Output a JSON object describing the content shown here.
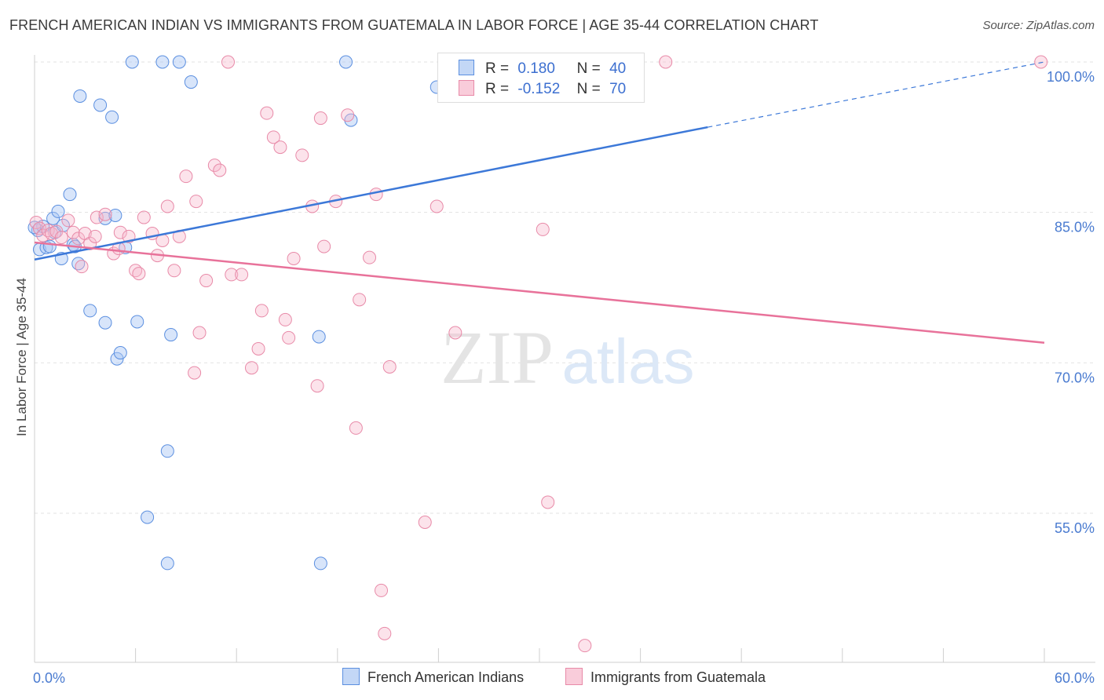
{
  "header": {
    "title": "FRENCH AMERICAN INDIAN VS IMMIGRANTS FROM GUATEMALA IN LABOR FORCE | AGE 35-44 CORRELATION CHART",
    "source": "Source: ZipAtlas.com"
  },
  "watermark": {
    "zip": "ZIP",
    "atlas": "atlas"
  },
  "legend": {
    "rows": [
      {
        "r_label": "R =",
        "r_value": "0.180",
        "n_label": "N =",
        "n_value": "40"
      },
      {
        "r_label": "R =",
        "r_value": "-0.152",
        "n_label": "N =",
        "n_value": "70"
      }
    ]
  },
  "chart_data": {
    "type": "scatter",
    "title": "FRENCH AMERICAN INDIAN VS IMMIGRANTS FROM GUATEMALA IN LABOR FORCE | AGE 35-44 CORRELATION CHART",
    "xlabel": "",
    "ylabel": "In Labor Force | Age 35-44",
    "xlim": [
      0,
      60
    ],
    "ylim": [
      40,
      102
    ],
    "x_tick_labels": [
      "0.0%",
      "60.0%"
    ],
    "y_ticks": [
      55,
      70,
      85,
      100
    ],
    "y_tick_labels": [
      "55.0%",
      "70.0%",
      "85.0%",
      "100.0%"
    ],
    "grid": true,
    "legend_position": "top-center",
    "colors": {
      "blue": "#3c78d8",
      "blue_fill": "#a9c6f5",
      "pink": "#e8729a",
      "pink_fill": "#f7b8cc",
      "tick_text": "#4a7bd0"
    },
    "series": [
      {
        "name": "French American Indians",
        "color": "#3c78d8",
        "r": 0.18,
        "n": 40,
        "trend": {
          "x0": 0,
          "y0": 80.3,
          "x1": 40,
          "y1": 93.5,
          "dashed_x1": 60,
          "dashed_y1": 100
        },
        "points": [
          [
            0.2,
            83.2
          ],
          [
            0.3,
            81.3
          ],
          [
            0.5,
            83.6
          ],
          [
            0.7,
            81.5
          ],
          [
            0.9,
            81.6
          ],
          [
            1.1,
            84.4
          ],
          [
            1.2,
            83.0
          ],
          [
            1.4,
            85.1
          ],
          [
            1.6,
            80.4
          ],
          [
            1.7,
            83.7
          ],
          [
            2.1,
            86.8
          ],
          [
            2.3,
            81.8
          ],
          [
            2.4,
            81.6
          ],
          [
            2.6,
            79.9
          ],
          [
            2.7,
            96.6
          ],
          [
            3.3,
            75.2
          ],
          [
            3.9,
            95.7
          ],
          [
            4.2,
            84.4
          ],
          [
            4.2,
            74.0
          ],
          [
            4.6,
            94.5
          ],
          [
            4.8,
            84.7
          ],
          [
            4.9,
            70.4
          ],
          [
            5.1,
            71.0
          ],
          [
            5.4,
            81.5
          ],
          [
            5.8,
            100.0
          ],
          [
            6.1,
            74.1
          ],
          [
            7.6,
            100.0
          ],
          [
            7.9,
            61.2
          ],
          [
            7.9,
            50.0
          ],
          [
            8.1,
            72.8
          ],
          [
            8.6,
            100.0
          ],
          [
            9.3,
            98.0
          ],
          [
            6.7,
            54.6
          ],
          [
            16.9,
            72.6
          ],
          [
            17.0,
            50.0
          ],
          [
            18.5,
            100.0
          ],
          [
            18.8,
            94.2
          ],
          [
            23.9,
            97.5
          ],
          [
            35.2,
            100.0
          ],
          [
            0.0,
            83.5
          ]
        ]
      },
      {
        "name": "Immigrants from Guatemala",
        "color": "#e8729a",
        "r": -0.152,
        "n": 70,
        "trend": {
          "x0": 0,
          "y0": 82.0,
          "x1": 60,
          "y1": 72.0
        },
        "points": [
          [
            0.1,
            84.0
          ],
          [
            0.3,
            83.4
          ],
          [
            0.5,
            82.7
          ],
          [
            0.8,
            83.2
          ],
          [
            1.0,
            82.9
          ],
          [
            1.3,
            83.1
          ],
          [
            1.6,
            82.5
          ],
          [
            2.0,
            84.2
          ],
          [
            2.3,
            83.0
          ],
          [
            2.6,
            82.4
          ],
          [
            2.8,
            79.6
          ],
          [
            3.0,
            82.9
          ],
          [
            3.3,
            81.9
          ],
          [
            3.6,
            82.6
          ],
          [
            3.7,
            84.5
          ],
          [
            4.2,
            84.8
          ],
          [
            4.7,
            80.9
          ],
          [
            5.0,
            81.4
          ],
          [
            5.1,
            83.0
          ],
          [
            5.6,
            82.6
          ],
          [
            6.0,
            79.2
          ],
          [
            6.2,
            78.9
          ],
          [
            6.5,
            84.5
          ],
          [
            7.0,
            82.9
          ],
          [
            7.3,
            80.7
          ],
          [
            7.6,
            82.2
          ],
          [
            7.9,
            85.6
          ],
          [
            8.3,
            79.2
          ],
          [
            8.6,
            82.6
          ],
          [
            9.0,
            88.6
          ],
          [
            9.5,
            69.0
          ],
          [
            9.6,
            86.1
          ],
          [
            9.8,
            73.0
          ],
          [
            10.2,
            78.2
          ],
          [
            10.7,
            89.7
          ],
          [
            11.0,
            89.2
          ],
          [
            11.5,
            100.0
          ],
          [
            11.7,
            78.8
          ],
          [
            12.3,
            78.8
          ],
          [
            12.9,
            69.5
          ],
          [
            13.3,
            71.4
          ],
          [
            13.5,
            75.2
          ],
          [
            13.8,
            94.9
          ],
          [
            14.2,
            92.5
          ],
          [
            14.6,
            91.5
          ],
          [
            14.9,
            74.3
          ],
          [
            15.1,
            72.5
          ],
          [
            15.4,
            80.4
          ],
          [
            15.9,
            90.7
          ],
          [
            16.5,
            85.6
          ],
          [
            16.8,
            67.7
          ],
          [
            17.0,
            94.4
          ],
          [
            17.2,
            81.6
          ],
          [
            17.9,
            86.1
          ],
          [
            18.6,
            94.7
          ],
          [
            19.1,
            63.5
          ],
          [
            19.3,
            76.3
          ],
          [
            19.9,
            80.5
          ],
          [
            20.3,
            86.8
          ],
          [
            20.6,
            47.3
          ],
          [
            20.8,
            43.0
          ],
          [
            21.1,
            69.6
          ],
          [
            23.2,
            54.1
          ],
          [
            23.9,
            85.6
          ],
          [
            25.0,
            73.0
          ],
          [
            30.2,
            83.3
          ],
          [
            30.5,
            56.1
          ],
          [
            32.7,
            41.8
          ],
          [
            37.5,
            100.0
          ],
          [
            59.8,
            100.0
          ]
        ]
      }
    ]
  }
}
